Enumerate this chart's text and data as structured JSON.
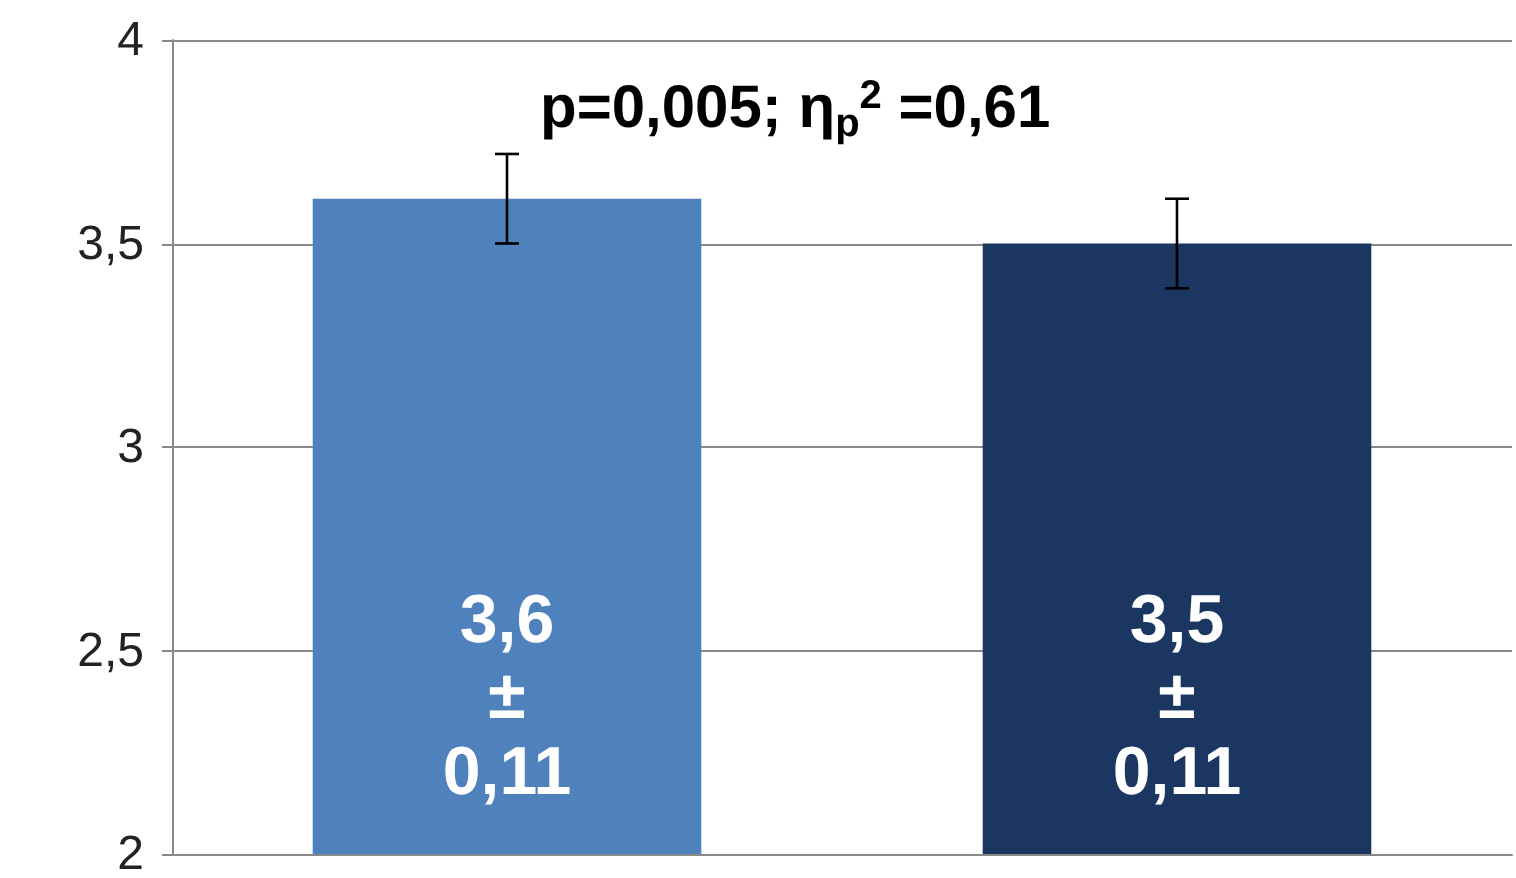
{
  "chart_data": {
    "type": "bar",
    "categories": [
      null,
      null
    ],
    "values": [
      3.61,
      3.5
    ],
    "colors": [
      "#4f81bd",
      "#1b3660"
    ],
    "errors": [
      0.11,
      0.11
    ],
    "value_labels": [
      "3,6\n±\n0,11",
      "3,5\n±\n0,11"
    ],
    "ylim": [
      2,
      4
    ],
    "yticks": [
      2,
      {
        "value": 2.5,
        "label": "2,5"
      },
      3,
      {
        "value": 3.5,
        "label": "3,5"
      },
      4
    ],
    "grid": "y",
    "annotations": [
      "p=0,005; η$_{p}$$^{2}$ =0,61"
    ]
  }
}
